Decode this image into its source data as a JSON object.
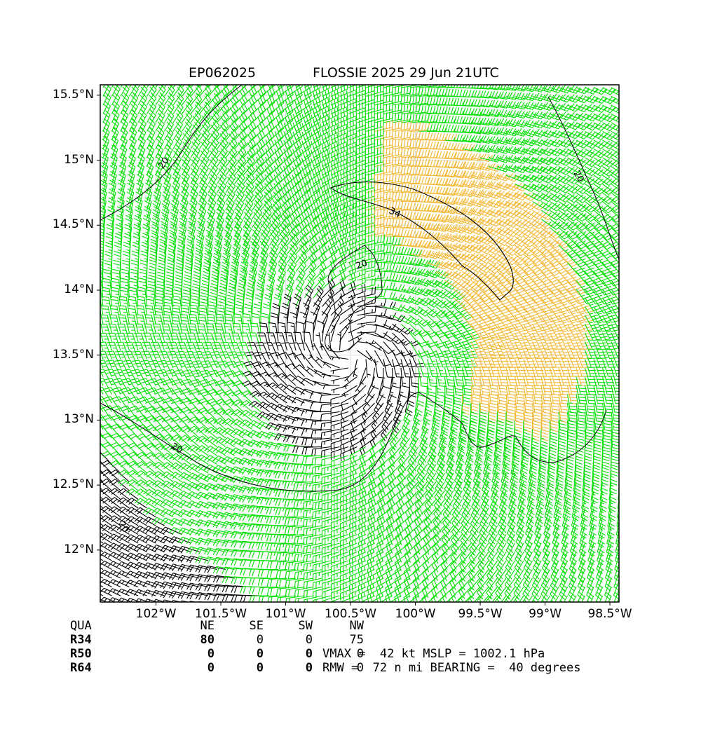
{
  "title": {
    "storm_id": "EP062025",
    "name_time": "FLOSSIE 2025 29 Jun 21UTC"
  },
  "axes": {
    "lat_labels": [
      "15.5°N",
      "15°N",
      "14.5°N",
      "14°N",
      "13.5°N",
      "13°N",
      "12.5°N",
      "12°N"
    ],
    "lat_values": [
      15.5,
      15.0,
      14.5,
      14.0,
      13.5,
      13.0,
      12.5,
      12.0
    ],
    "lon_labels": [
      "102°W",
      "101.5°W",
      "101°W",
      "100.5°W",
      "100°W",
      "99.5°W",
      "99°W",
      "98.5°W"
    ],
    "lon_values": [
      -102.0,
      -101.5,
      -101.0,
      -100.5,
      -100.0,
      -99.5,
      -99.0,
      -98.5
    ],
    "lon_range": [
      -102.43,
      -98.43
    ],
    "lat_range": [
      11.6,
      15.58
    ],
    "grid": true
  },
  "storm": {
    "center_lon": -100.5,
    "center_lat": 13.5
  },
  "contours": [
    {
      "label": "20",
      "level_kt": 20
    },
    {
      "label": "34",
      "level_kt": 34
    }
  ],
  "colors": {
    "weak": "#000000",
    "gale": "#00e000",
    "strong": "#f2b833",
    "contour": "#000000"
  },
  "quadrant_table": {
    "header": [
      "QUA",
      "NE",
      "SE",
      "SW",
      "NW"
    ],
    "rows": [
      {
        "label": "R34",
        "values": [
          "80",
          "0",
          "0",
          "75"
        ]
      },
      {
        "label": "R50",
        "values": [
          "0",
          "0",
          "0",
          "0"
        ]
      },
      {
        "label": "R64",
        "values": [
          "0",
          "0",
          "0",
          "0"
        ]
      }
    ]
  },
  "summary": {
    "line1": "VMAX =  42 kt MSLP = 1002.1 hPa",
    "line2": "RMW =  72 n mi BEARING =  40 degrees"
  }
}
